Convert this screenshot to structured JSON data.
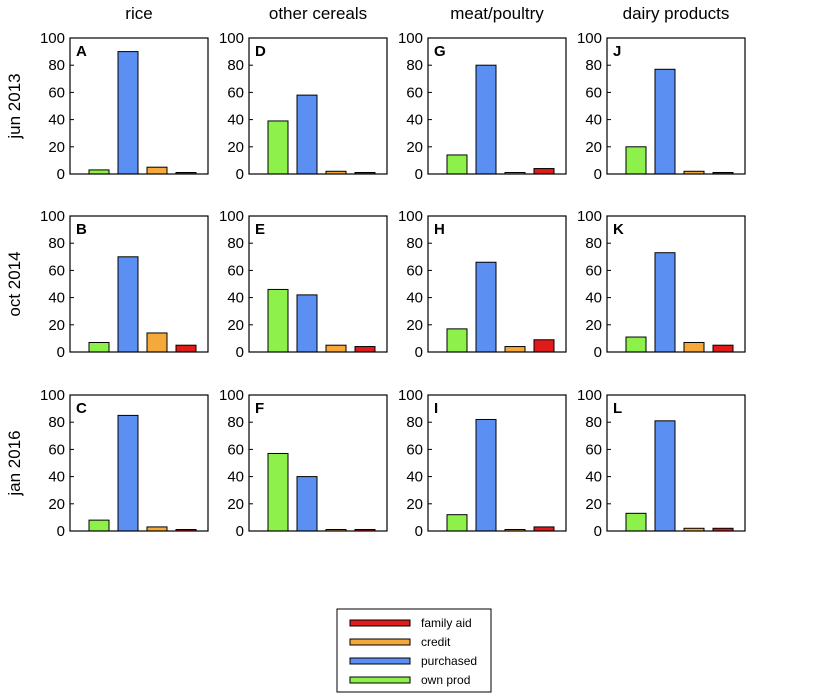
{
  "chart_data": {
    "type": "bar",
    "layout": "grid",
    "columns": [
      "rice",
      "other cereals",
      "meat/poultry",
      "dairy products"
    ],
    "rows": [
      "jun 2013",
      "oct 2014",
      "jan 2016"
    ],
    "categories": [
      "own prod",
      "purchased",
      "credit",
      "family aid"
    ],
    "legend": {
      "placement": "bottom-center",
      "entries": [
        {
          "name": "family aid",
          "color": "#e01b1b"
        },
        {
          "name": "credit",
          "color": "#f4a93a"
        },
        {
          "name": "purchased",
          "color": "#5b8ff2"
        },
        {
          "name": "own prod",
          "color": "#8ef04a"
        }
      ]
    },
    "ylim": [
      0,
      100
    ],
    "yticks": [
      0,
      20,
      40,
      60,
      80,
      100
    ],
    "panels": [
      {
        "letter": "A",
        "column": "rice",
        "row": "jun 2013",
        "values": [
          3,
          90,
          5,
          1
        ]
      },
      {
        "letter": "B",
        "column": "rice",
        "row": "oct 2014",
        "values": [
          7,
          70,
          14,
          5
        ]
      },
      {
        "letter": "C",
        "column": "rice",
        "row": "jan 2016",
        "values": [
          8,
          85,
          3,
          1
        ]
      },
      {
        "letter": "D",
        "column": "other cereals",
        "row": "jun 2013",
        "values": [
          39,
          58,
          2,
          1
        ]
      },
      {
        "letter": "E",
        "column": "other cereals",
        "row": "oct 2014",
        "values": [
          46,
          42,
          5,
          4
        ]
      },
      {
        "letter": "F",
        "column": "other cereals",
        "row": "jan 2016",
        "values": [
          57,
          40,
          1,
          1
        ]
      },
      {
        "letter": "G",
        "column": "meat/poultry",
        "row": "jun 2013",
        "values": [
          14,
          80,
          1,
          4
        ]
      },
      {
        "letter": "H",
        "column": "meat/poultry",
        "row": "oct 2014",
        "values": [
          17,
          66,
          4,
          9
        ]
      },
      {
        "letter": "I",
        "column": "meat/poultry",
        "row": "jan 2016",
        "values": [
          12,
          82,
          1,
          3
        ]
      },
      {
        "letter": "J",
        "column": "dairy products",
        "row": "jun 2013",
        "values": [
          20,
          77,
          2,
          1
        ]
      },
      {
        "letter": "K",
        "column": "dairy products",
        "row": "oct 2014",
        "values": [
          11,
          73,
          7,
          5
        ]
      },
      {
        "letter": "L",
        "column": "dairy products",
        "row": "jan 2016",
        "values": [
          13,
          81,
          2,
          2
        ]
      }
    ]
  }
}
